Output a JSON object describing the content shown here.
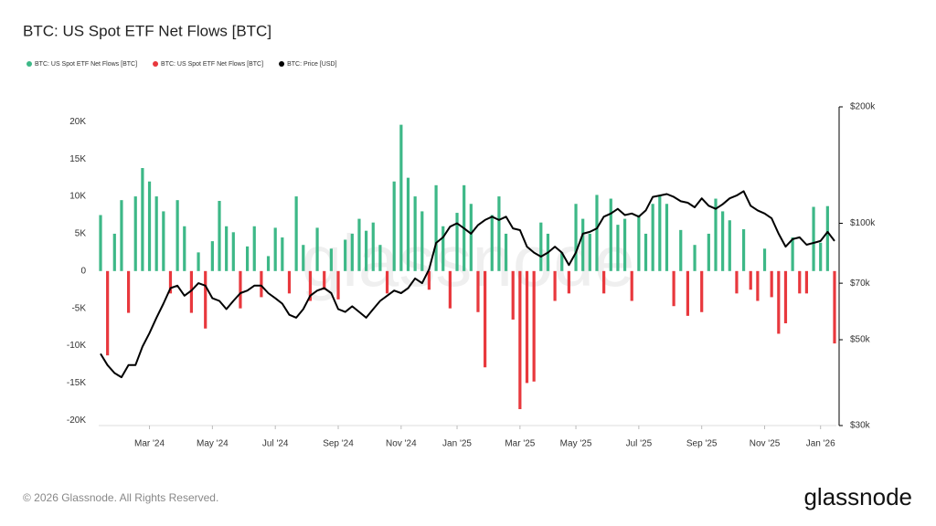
{
  "chart_data": {
    "type": "bar",
    "title": "BTC: US Spot ETF Net Flows [BTC]",
    "watermark": "glassnode",
    "footer": "© 2026 Glassnode. All Rights Reserved.",
    "logo": "glassnode",
    "legend": "top-left",
    "categories": [
      null,
      null,
      null,
      null,
      null,
      null,
      null,
      "Mar '24",
      null,
      null,
      null,
      null,
      null,
      null,
      null,
      null,
      "May '24",
      null,
      null,
      null,
      null,
      null,
      null,
      null,
      null,
      "Jul '24",
      null,
      null,
      null,
      null,
      null,
      null,
      null,
      null,
      "Sep '24",
      null,
      null,
      null,
      null,
      null,
      null,
      null,
      null,
      "Nov '24",
      null,
      null,
      null,
      null,
      null,
      null,
      null,
      "Jan '25",
      null,
      null,
      null,
      null,
      null,
      null,
      null,
      null,
      "Mar '25",
      null,
      null,
      null,
      null,
      null,
      null,
      null,
      "May '25",
      null,
      null,
      null,
      null,
      null,
      null,
      null,
      null,
      "Jul '25",
      null,
      null,
      null,
      null,
      null,
      null,
      null,
      null,
      "Sep '25",
      null,
      null,
      null,
      null,
      null,
      null,
      null,
      null,
      "Nov '25",
      null,
      null,
      null,
      null,
      null,
      null,
      null,
      "Jan '26",
      null,
      null
    ],
    "series": [
      {
        "name": "BTC: US Spot ETF Net Flows [BTC]",
        "type": "bar",
        "color": "#3db887",
        "values": [
          7500,
          null,
          5000,
          9500,
          null,
          10000,
          13800,
          12000,
          10000,
          8000,
          null,
          9500,
          6000,
          null,
          2500,
          null,
          4000,
          9400,
          6000,
          5200,
          null,
          3300,
          6000,
          null,
          2000,
          5800,
          4500,
          null,
          10000,
          3500,
          null,
          5800,
          null,
          3000,
          null,
          4200,
          5000,
          7000,
          5400,
          6500,
          3500,
          null,
          12000,
          19600,
          12500,
          10000,
          8000,
          null,
          11500,
          6000,
          null,
          7800,
          11500,
          9000,
          null,
          null,
          7500,
          10000,
          5000,
          null,
          null,
          null,
          null,
          6500,
          5000,
          null,
          2500,
          null,
          9000,
          7000,
          5000,
          10200,
          null,
          9700,
          6200,
          7000,
          null,
          7500,
          5000,
          9000,
          10200,
          9000,
          null,
          5500,
          null,
          3500,
          null,
          5000,
          9700,
          8000,
          6800,
          null,
          5600,
          null,
          null,
          3000,
          null,
          null,
          null,
          4500,
          null,
          null,
          8600,
          3800,
          8700,
          null
        ]
      },
      {
        "name": "BTC: US Spot ETF Net Flows [BTC]",
        "type": "bar",
        "color": "#e8383d",
        "values": [
          null,
          -11300,
          null,
          null,
          -5600,
          null,
          null,
          null,
          null,
          null,
          -3000,
          null,
          null,
          -5600,
          null,
          -7700,
          null,
          null,
          null,
          null,
          -5000,
          null,
          null,
          -3500,
          null,
          null,
          null,
          -3000,
          null,
          null,
          -4000,
          null,
          -2500,
          null,
          -3800,
          null,
          null,
          null,
          null,
          null,
          null,
          -3000,
          null,
          null,
          null,
          null,
          null,
          -2500,
          null,
          null,
          -5000,
          null,
          null,
          null,
          -5500,
          -12900,
          null,
          null,
          null,
          -6500,
          -18500,
          -15000,
          -14800,
          null,
          null,
          -4000,
          null,
          -3000,
          null,
          null,
          null,
          null,
          -3000,
          null,
          null,
          null,
          -4000,
          null,
          null,
          null,
          null,
          null,
          -4700,
          null,
          -6000,
          null,
          -5500,
          null,
          null,
          null,
          null,
          -3000,
          null,
          -2500,
          -4000,
          null,
          -3500,
          -8400,
          -7000,
          null,
          -3000,
          -3000,
          null,
          null,
          null,
          -9700
        ]
      },
      {
        "name": "BTC: Price [USD]",
        "type": "line",
        "axis": "y2",
        "color": "#000000",
        "values": [
          46000,
          43000,
          41000,
          40000,
          43000,
          43000,
          48000,
          52000,
          57000,
          62000,
          68000,
          69000,
          65000,
          67000,
          70000,
          69000,
          64000,
          63000,
          60000,
          63000,
          66000,
          67000,
          69000,
          69000,
          66000,
          64000,
          62000,
          58000,
          57000,
          60000,
          65000,
          67000,
          68000,
          66000,
          60000,
          59000,
          61000,
          59000,
          57000,
          60000,
          63000,
          65000,
          67000,
          66000,
          68000,
          72000,
          70000,
          76000,
          89000,
          92000,
          98000,
          100000,
          97000,
          94000,
          99000,
          102000,
          104000,
          102000,
          104000,
          97000,
          96000,
          87000,
          84000,
          82000,
          84000,
          87000,
          84000,
          78000,
          84000,
          94000,
          95000,
          97000,
          104000,
          106000,
          109000,
          105000,
          106000,
          104000,
          108000,
          117000,
          118000,
          119000,
          117000,
          114000,
          113000,
          110000,
          116000,
          111000,
          109000,
          112000,
          116000,
          118000,
          121000,
          111000,
          108000,
          106000,
          103000,
          94000,
          87000,
          91000,
          92000,
          88000,
          89000,
          90000,
          95000,
          90000
        ]
      }
    ],
    "ylim": [
      -20700,
      22000
    ],
    "yticks": [
      {
        "value": -20000,
        "label": "-20K"
      },
      {
        "value": -15000,
        "label": "-15K"
      },
      {
        "value": -10000,
        "label": "-10K"
      },
      {
        "value": -5000,
        "label": "-5K"
      },
      0,
      {
        "value": 5000,
        "label": "5K"
      },
      {
        "value": 10000,
        "label": "10K"
      },
      {
        "value": 15000,
        "label": "15K"
      },
      {
        "value": 20000,
        "label": "20K"
      }
    ],
    "y2lim": [
      30000,
      200000
    ],
    "y2log": true,
    "y2ticks": [
      {
        "value": 30000,
        "label": "$30k"
      },
      {
        "value": 50000,
        "label": "$50k"
      },
      {
        "value": 70000,
        "label": "$70k"
      },
      {
        "value": 100000,
        "label": "$100k"
      },
      {
        "value": 200000,
        "label": "$200k"
      }
    ],
    "grid": false
  }
}
